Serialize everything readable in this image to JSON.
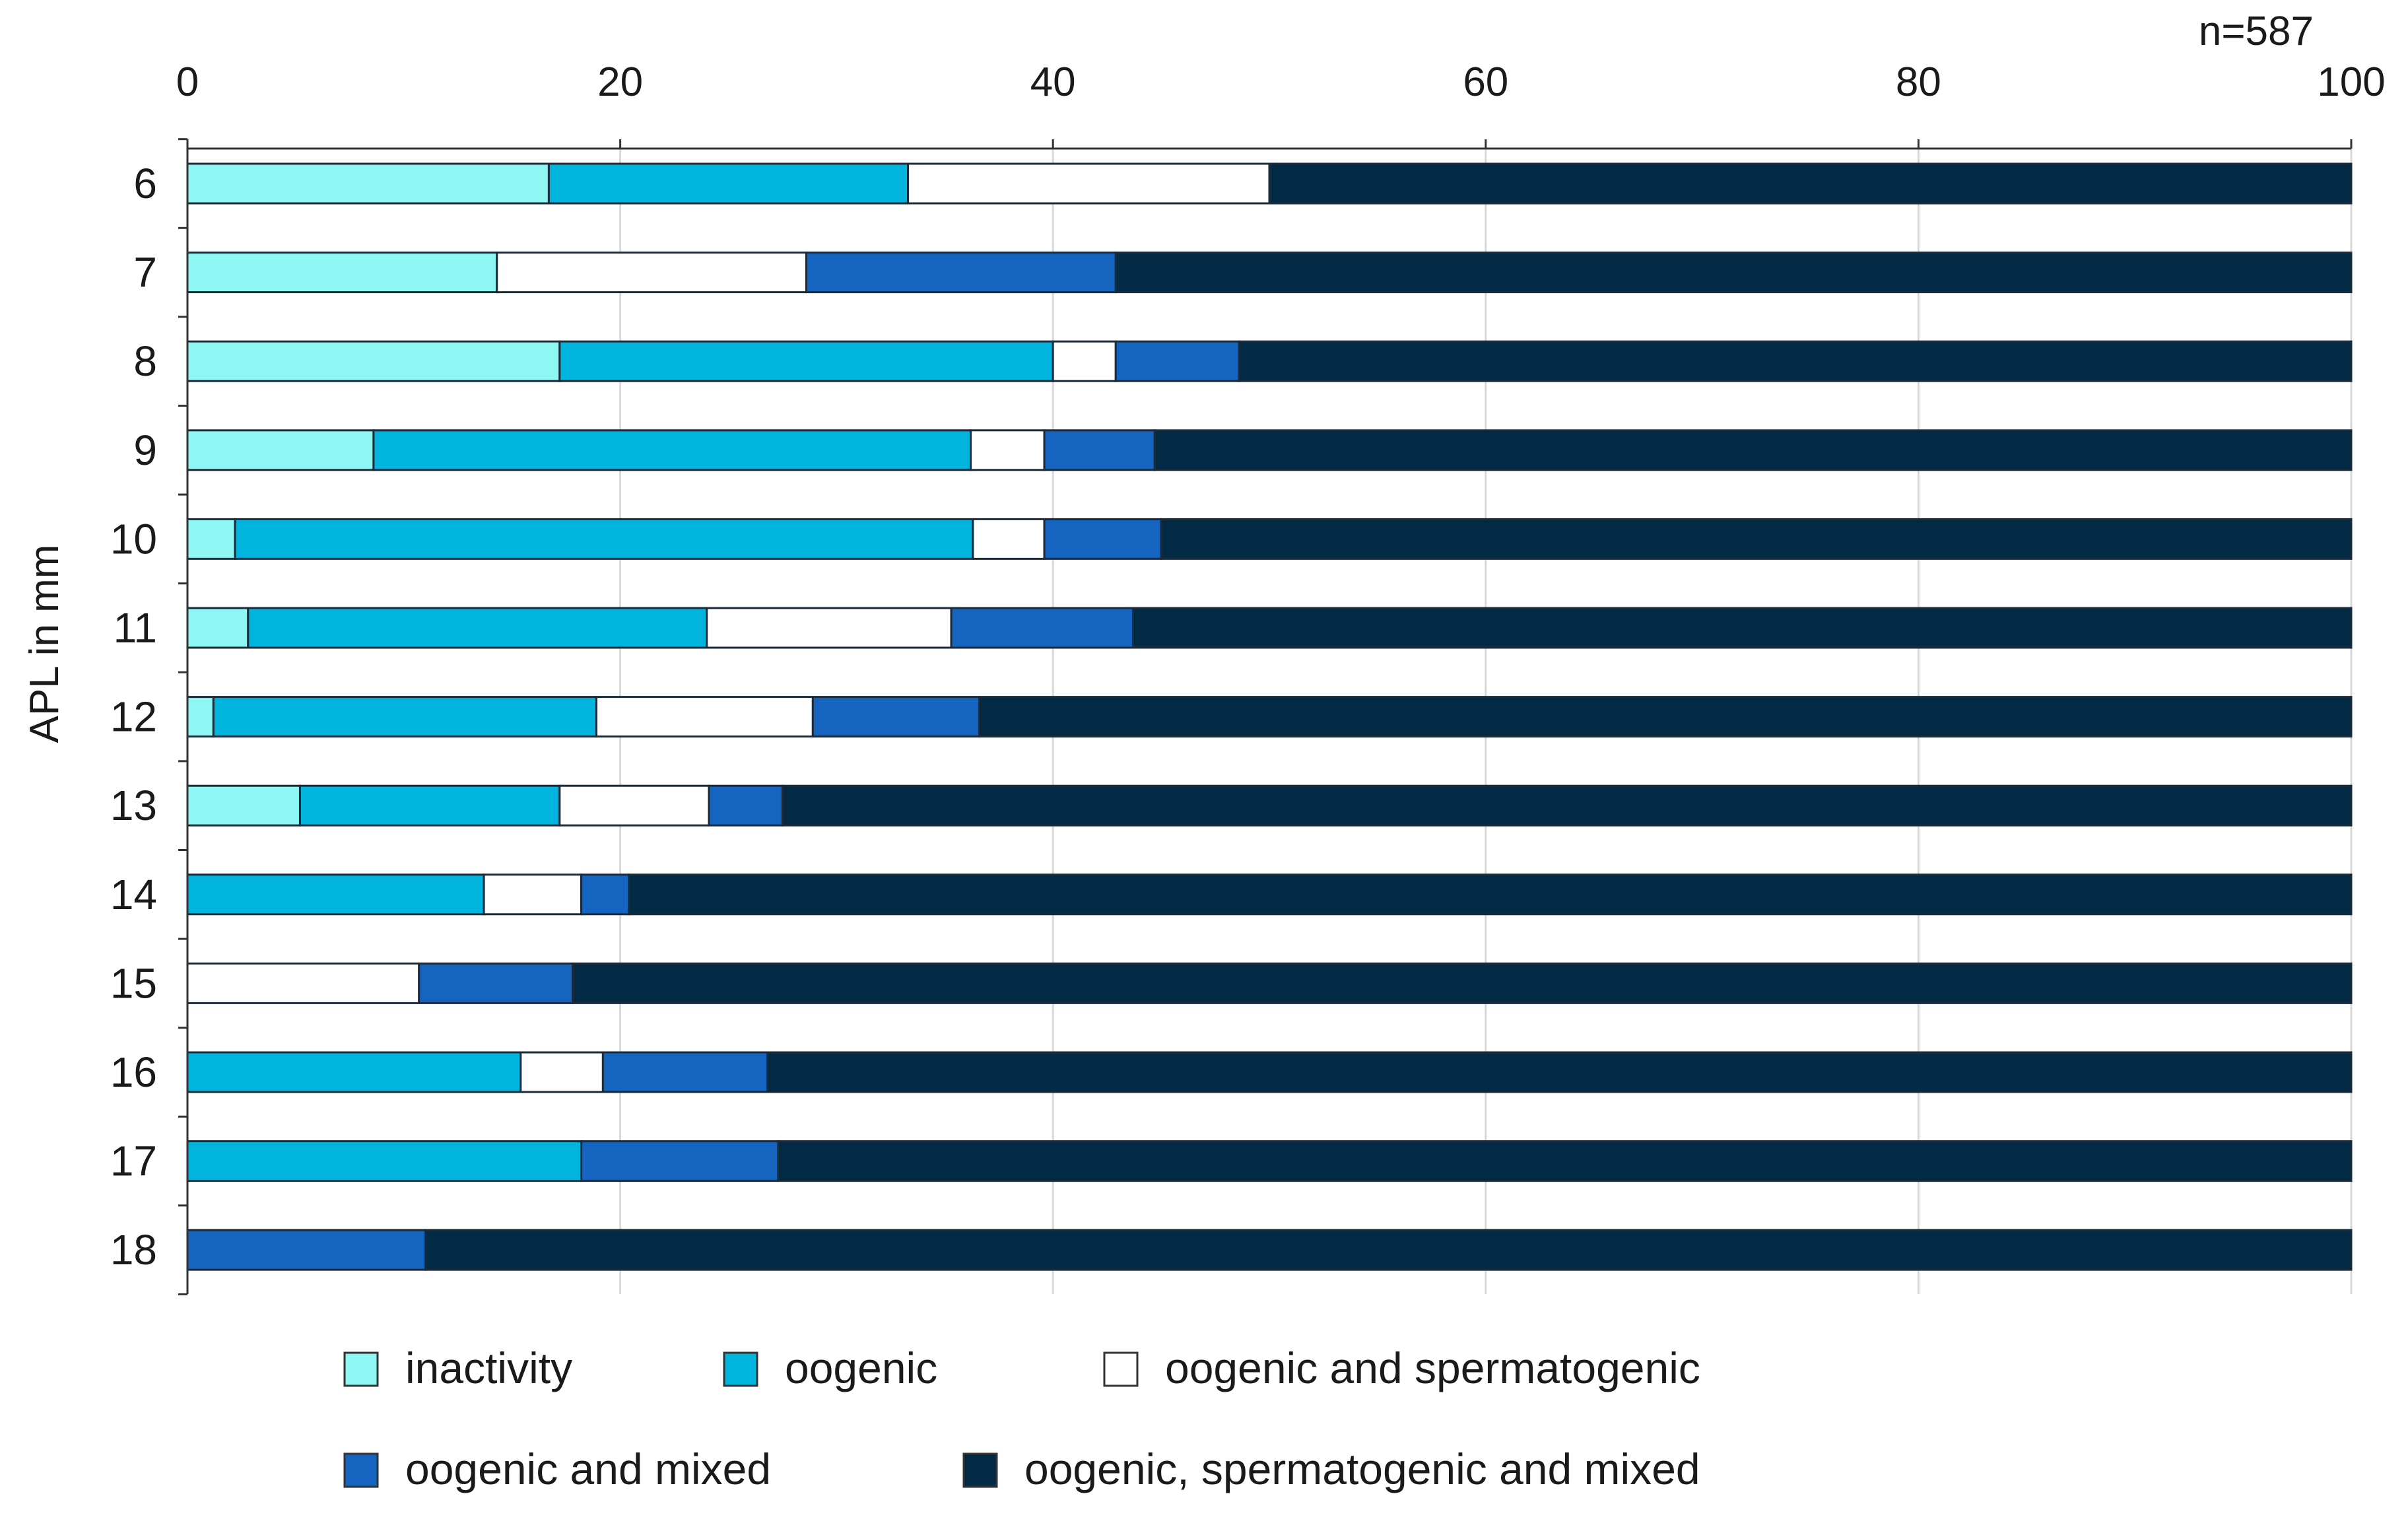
{
  "chart_data": {
    "type": "bar",
    "orientation": "horizontal",
    "stacked": true,
    "title": "",
    "annotation": "n=587",
    "xlabel": "",
    "ylabel": "APL in mm",
    "xlim": [
      0,
      100
    ],
    "xticks": [
      "0",
      "20",
      "40",
      "60",
      "80",
      "100"
    ],
    "xtick_values": [
      0,
      20,
      40,
      60,
      80,
      100
    ],
    "grid": true,
    "legend_position": "bottom",
    "categories": [
      "6",
      "7",
      "8",
      "9",
      "10",
      "11",
      "12",
      "13",
      "14",
      "15",
      "16",
      "17",
      "18"
    ],
    "series": [
      {
        "name": "inactivity",
        "color": "#8ef7f4",
        "values": [
          16.7,
          14.3,
          17.2,
          8.6,
          2.2,
          2.8,
          1.2,
          5.2,
          0,
          0,
          0,
          0,
          0
        ]
      },
      {
        "name": "oogenic",
        "color": "#00b4dd",
        "values": [
          16.6,
          0,
          22.8,
          27.6,
          34.1,
          21.2,
          17.7,
          12.0,
          13.7,
          0,
          15.4,
          18.2,
          0
        ]
      },
      {
        "name": "oogenic and spermatogenic",
        "color": "#ffffff",
        "values": [
          16.7,
          14.3,
          2.9,
          3.4,
          3.3,
          11.3,
          10.0,
          6.9,
          4.5,
          10.7,
          3.8,
          0,
          0
        ]
      },
      {
        "name": "oogenic and mixed",
        "color": "#1565c0",
        "values": [
          0,
          14.3,
          5.7,
          5.1,
          5.4,
          8.4,
          7.7,
          3.4,
          2.2,
          7.1,
          7.6,
          9.1,
          11.0
        ]
      },
      {
        "name": "oogenic, spermatogenic and mixed",
        "color": "#022a45",
        "values": [
          50.0,
          57.1,
          51.4,
          55.3,
          55.0,
          56.3,
          63.4,
          72.5,
          79.6,
          82.2,
          73.2,
          72.7,
          89.0
        ]
      }
    ]
  }
}
